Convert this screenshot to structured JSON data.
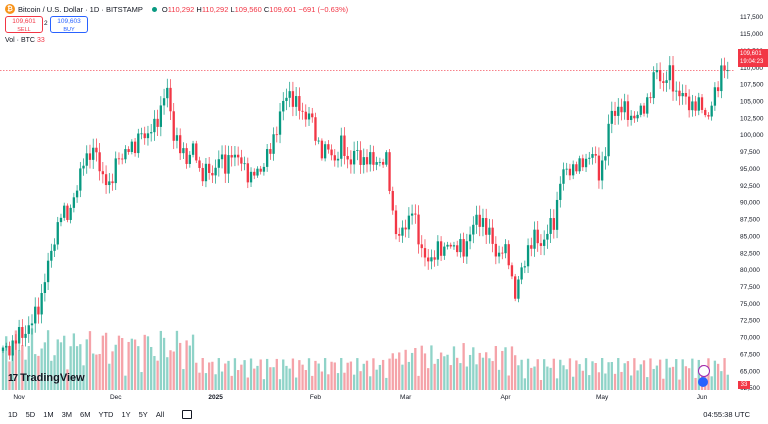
{
  "header": {
    "symbol": "Bitcoin / U.S. Dollar · 1D · BITSTAMP",
    "icon": "bitcoin-icon",
    "ohlc": [
      {
        "k": "O",
        "v": "110,292"
      },
      {
        "k": "H",
        "v": "110,292"
      },
      {
        "k": "L",
        "v": "109,560"
      },
      {
        "k": "C",
        "v": "109,601"
      },
      {
        "k": "",
        "v": "−691 (−0.63%)"
      }
    ]
  },
  "trade": {
    "sell_price": "109,601",
    "sell_label": "SELL",
    "spread": "2",
    "buy_price": "109,603",
    "buy_label": "BUY"
  },
  "volume_legend": {
    "label": "Vol · BTC",
    "value": "33"
  },
  "price_tag": {
    "price": "109,601",
    "countdown": "19:04:23"
  },
  "volume_tag": "33",
  "logo": {
    "text": "TradingView",
    "icon": "tradingview-logo-icon"
  },
  "timeframes": [
    "1D",
    "5D",
    "1M",
    "3M",
    "6M",
    "YTD",
    "1Y",
    "5Y",
    "All"
  ],
  "calendar_icon": "calendar-range-icon",
  "clock": "04:55:38 UTC",
  "colors": {
    "up": "#089981",
    "down": "#f23645",
    "vol_up": "#8fd3c8",
    "vol_down": "#f5a3a9"
  },
  "chart_data": {
    "type": "candlestick",
    "y_ticks": [
      62500,
      65000,
      67500,
      70000,
      72500,
      75000,
      77500,
      80000,
      82500,
      85000,
      87500,
      90000,
      92500,
      95000,
      97500,
      100000,
      102500,
      105000,
      107500,
      110000,
      112500,
      115000,
      117500
    ],
    "y_tick_labels": [
      "62,500",
      "65,000",
      "67,500",
      "70,000",
      "72,500",
      "75,000",
      "77,500",
      "80,000",
      "82,500",
      "85,000",
      "87,500",
      "90,000",
      "92,500",
      "95,000",
      "97,500",
      "100,000",
      "102,500",
      "105,000",
      "107,500",
      "110,000",
      "112,500",
      "115,000",
      "117,500"
    ],
    "ylim": [
      62500,
      117500
    ],
    "x_labels": [
      "Nov",
      "Dec",
      "2025",
      "Feb",
      "Mar",
      "Apr",
      "May",
      "Jun"
    ],
    "x_label_index": [
      5,
      35,
      66,
      97,
      125,
      156,
      186,
      217
    ],
    "current_price": 109601,
    "close_path": [
      [
        0,
        67800
      ],
      [
        4,
        69500
      ],
      [
        5,
        70200
      ],
      [
        9,
        72000
      ],
      [
        12,
        76300
      ],
      [
        14,
        80500
      ],
      [
        16,
        85000
      ],
      [
        18,
        88000
      ],
      [
        20,
        88500
      ],
      [
        23,
        91500
      ],
      [
        25,
        97000
      ],
      [
        27,
        96500
      ],
      [
        29,
        97800
      ],
      [
        31,
        93500
      ],
      [
        33,
        92000
      ],
      [
        35,
        96500
      ],
      [
        37,
        96000
      ],
      [
        39,
        99000
      ],
      [
        41,
        97500
      ],
      [
        43,
        101000
      ],
      [
        45,
        99500
      ],
      [
        47,
        101500
      ],
      [
        49,
        104000
      ],
      [
        51,
        106500
      ],
      [
        53,
        100500
      ],
      [
        55,
        97500
      ],
      [
        57,
        96800
      ],
      [
        59,
        98000
      ],
      [
        61,
        94500
      ],
      [
        63,
        95000
      ],
      [
        65,
        93500
      ],
      [
        67,
        97500
      ],
      [
        69,
        94500
      ],
      [
        71,
        98000
      ],
      [
        73,
        96000
      ],
      [
        75,
        95500
      ],
      [
        77,
        93500
      ],
      [
        79,
        94500
      ],
      [
        81,
        96000
      ],
      [
        83,
        97500
      ],
      [
        85,
        101500
      ],
      [
        87,
        104500
      ],
      [
        89,
        106500
      ],
      [
        91,
        104500
      ],
      [
        93,
        103000
      ],
      [
        95,
        103500
      ],
      [
        97,
        99500
      ],
      [
        99,
        98000
      ],
      [
        101,
        97500
      ],
      [
        103,
        96500
      ],
      [
        105,
        98500
      ],
      [
        107,
        96000
      ],
      [
        109,
        97500
      ],
      [
        111,
        96000
      ],
      [
        113,
        97000
      ],
      [
        115,
        95500
      ],
      [
        117,
        96500
      ],
      [
        119,
        96000
      ],
      [
        121,
        88500
      ],
      [
        123,
        84500
      ],
      [
        125,
        86500
      ],
      [
        127,
        89500
      ],
      [
        129,
        84000
      ],
      [
        131,
        82500
      ],
      [
        133,
        80500
      ],
      [
        135,
        84000
      ],
      [
        137,
        82500
      ],
      [
        139,
        84000
      ],
      [
        141,
        83500
      ],
      [
        143,
        82500
      ],
      [
        145,
        86000
      ],
      [
        147,
        87000
      ],
      [
        149,
        87500
      ],
      [
        151,
        85000
      ],
      [
        153,
        82500
      ],
      [
        155,
        83000
      ],
      [
        157,
        81500
      ],
      [
        159,
        76500
      ],
      [
        161,
        79500
      ],
      [
        163,
        83500
      ],
      [
        165,
        84500
      ],
      [
        167,
        84000
      ],
      [
        169,
        85500
      ],
      [
        171,
        87000
      ],
      [
        173,
        93500
      ],
      [
        175,
        94500
      ],
      [
        177,
        95500
      ],
      [
        179,
        95000
      ],
      [
        181,
        96800
      ],
      [
        183,
        97000
      ],
      [
        185,
        94500
      ],
      [
        187,
        97500
      ],
      [
        189,
        103500
      ],
      [
        191,
        104000
      ],
      [
        193,
        103500
      ],
      [
        195,
        103000
      ],
      [
        197,
        102500
      ],
      [
        199,
        104500
      ],
      [
        201,
        106000
      ],
      [
        203,
        110000
      ],
      [
        205,
        107500
      ],
      [
        207,
        109000
      ],
      [
        209,
        106500
      ],
      [
        211,
        105500
      ],
      [
        213,
        105000
      ],
      [
        215,
        104000
      ],
      [
        217,
        104500
      ],
      [
        219,
        102500
      ],
      [
        221,
        106000
      ],
      [
        223,
        110000
      ],
      [
        225,
        109601
      ]
    ],
    "volume_note": "volume bars in bottom pane, scale 0–max, colored by candle direction"
  }
}
